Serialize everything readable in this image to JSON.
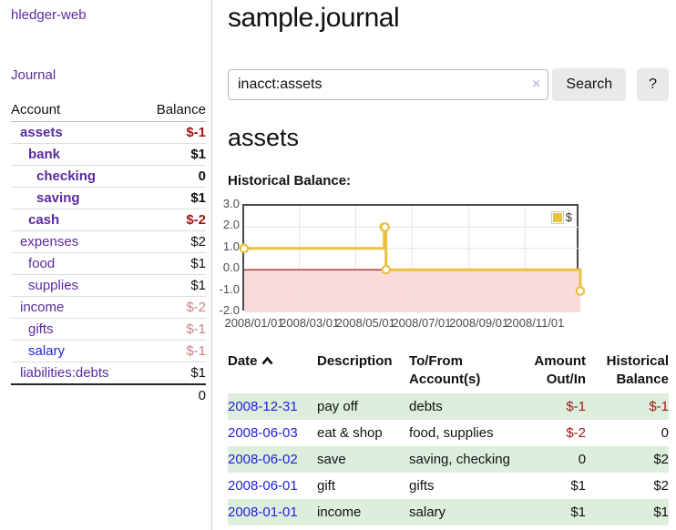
{
  "app": {
    "title": "hledger-web"
  },
  "sidebar": {
    "journal_link": "Journal",
    "accounts_table": {
      "headers": {
        "account": "Account",
        "balance": "Balance"
      },
      "rows": [
        {
          "name": "assets",
          "depth": 1,
          "bold": true,
          "balance": "$-1",
          "balance_style": "negative",
          "link_color": "purple"
        },
        {
          "name": "bank",
          "depth": 2,
          "bold": true,
          "balance": "$1",
          "balance_style": "normal",
          "link_color": "purple"
        },
        {
          "name": "checking",
          "depth": 3,
          "bold": true,
          "balance": "0",
          "balance_style": "normal",
          "link_color": "purple"
        },
        {
          "name": "saving",
          "depth": 3,
          "bold": true,
          "balance": "$1",
          "balance_style": "normal",
          "link_color": "purple"
        },
        {
          "name": "cash",
          "depth": 2,
          "bold": true,
          "balance": "$-2",
          "balance_style": "negative",
          "link_color": "purple"
        },
        {
          "name": "expenses",
          "depth": 1,
          "bold": false,
          "balance": "$2",
          "balance_style": "normal",
          "link_color": "purple"
        },
        {
          "name": "food",
          "depth": 2,
          "bold": false,
          "balance": "$1",
          "balance_style": "normal",
          "link_color": "purple"
        },
        {
          "name": "supplies",
          "depth": 2,
          "bold": false,
          "balance": "$1",
          "balance_style": "normal",
          "link_color": "purple"
        },
        {
          "name": "income",
          "depth": 1,
          "bold": false,
          "balance": "$-2",
          "balance_style": "negative-dim",
          "link_color": "purple"
        },
        {
          "name": "gifts",
          "depth": 2,
          "bold": false,
          "balance": "$-1",
          "balance_style": "negative-dim",
          "link_color": "purple"
        },
        {
          "name": "salary",
          "depth": 2,
          "bold": false,
          "balance": "$-1",
          "balance_style": "negative-dim",
          "link_color": "blue"
        },
        {
          "name": "liabilities:debts",
          "depth": 1,
          "bold": false,
          "balance": "$1",
          "balance_style": "normal",
          "link_color": "purple"
        }
      ],
      "total": "0"
    }
  },
  "main": {
    "title": "sample.journal",
    "search": {
      "value": "inacct:assets",
      "clear_icon": "×",
      "search_button": "Search",
      "help_button": "?"
    },
    "account_heading": "assets",
    "chart_label": "Historical Balance:"
  },
  "chart_data": {
    "type": "line",
    "step": true,
    "title": "Historical Balance:",
    "x_start": "2008-01-01",
    "x_end": "2008-12-31",
    "ylim": [
      -2,
      3
    ],
    "yticks": [
      {
        "label": "3.0",
        "value": 3
      },
      {
        "label": "2.0",
        "value": 2
      },
      {
        "label": "1.0",
        "value": 1
      },
      {
        "label": "0.0",
        "value": 0
      },
      {
        "label": "-1.0",
        "value": -1
      },
      {
        "label": "-2.0",
        "value": -2
      }
    ],
    "xticks": [
      {
        "label": "2008/01/01",
        "date": "2008-01-01"
      },
      {
        "label": "2008/03/01",
        "date": "2008-03-01"
      },
      {
        "label": "2008/05/01",
        "date": "2008-05-01"
      },
      {
        "label": "2008/07/01",
        "date": "2008-07-01"
      },
      {
        "label": "2008/09/01",
        "date": "2008-09-01"
      },
      {
        "label": "2008/11/01",
        "date": "2008-11-01"
      }
    ],
    "series": [
      {
        "name": "$",
        "points": [
          {
            "date": "2008-01-01",
            "value": 1
          },
          {
            "date": "2008-06-01",
            "value": 2
          },
          {
            "date": "2008-06-02",
            "value": 2
          },
          {
            "date": "2008-06-03",
            "value": 0
          },
          {
            "date": "2008-12-31",
            "value": -1
          }
        ]
      }
    ],
    "legend": {
      "label": "$",
      "position": "top-right"
    },
    "colors": {
      "line": "#e8c240",
      "marker_fill": "#ffffff",
      "negative_region": "#fbdada",
      "zero_line": "#8b0000",
      "grid": "#e4e4e4",
      "border": "#4a4a4a"
    }
  },
  "register": {
    "headers": {
      "date": "Date",
      "description": "Description",
      "accounts": "To/From Account(s)",
      "amount": "Amount Out/In",
      "balance": "Historical Balance"
    },
    "sort": {
      "column": "date",
      "direction": "asc"
    },
    "rows": [
      {
        "date": "2008-12-31",
        "description": "pay off",
        "accounts": "debts",
        "amount": "$-1",
        "amount_negative": true,
        "balance": "$-1",
        "balance_negative": true
      },
      {
        "date": "2008-06-03",
        "description": "eat & shop",
        "accounts": "food, supplies",
        "amount": "$-2",
        "amount_negative": true,
        "balance": "0",
        "balance_negative": false
      },
      {
        "date": "2008-06-02",
        "description": "save",
        "accounts": "saving, checking",
        "amount": "0",
        "amount_negative": false,
        "balance": "$2",
        "balance_negative": false
      },
      {
        "date": "2008-06-01",
        "description": "gift",
        "accounts": "gifts",
        "amount": "$1",
        "amount_negative": false,
        "balance": "$2",
        "balance_negative": false
      },
      {
        "date": "2008-01-01",
        "description": "income",
        "accounts": "salary",
        "amount": "$1",
        "amount_negative": false,
        "balance": "$1",
        "balance_negative": false
      }
    ]
  }
}
